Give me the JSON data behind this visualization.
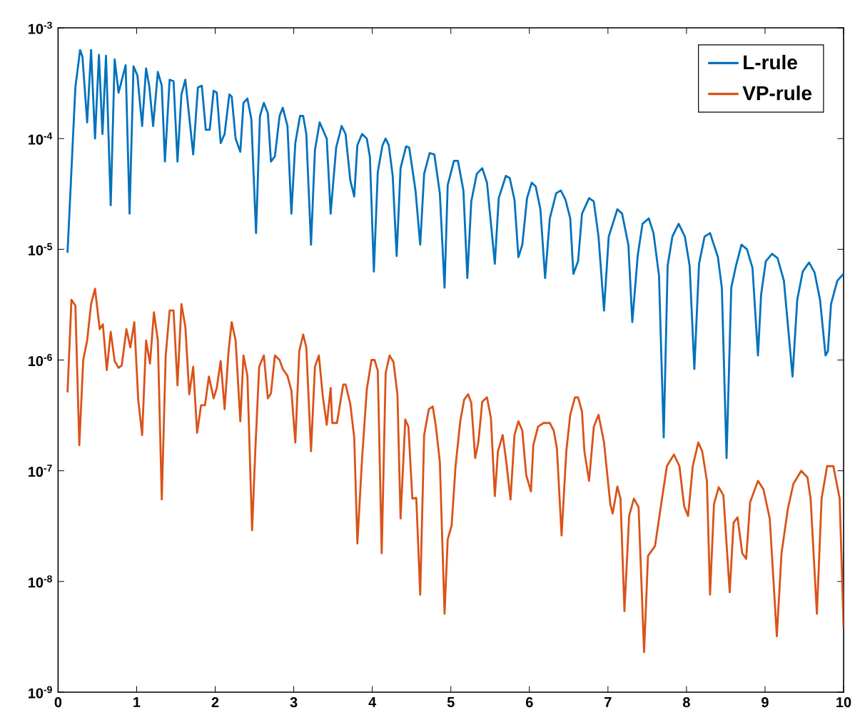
{
  "chart_data": {
    "type": "line",
    "log": "y",
    "legend": "top right",
    "xlim": [
      0,
      10
    ],
    "xticks": [
      0,
      1,
      2,
      3,
      4,
      5,
      6,
      7,
      8,
      9,
      10
    ],
    "ylim": [
      1e-09,
      0.001
    ],
    "yticks": [
      {
        "value": 1e-09,
        "label": "10$^{-9}$"
      },
      {
        "value": 1e-08,
        "label": "10$^{-8}$"
      },
      {
        "value": 1e-07,
        "label": "10$^{-7}$"
      },
      {
        "value": 1e-06,
        "label": "10$^{-6}$"
      },
      {
        "value": 1e-05,
        "label": "10$^{-5}$"
      },
      {
        "value": 0.0001,
        "label": "10$^{-4}$"
      },
      {
        "value": 0.001,
        "label": "10$^{-3}$"
      }
    ],
    "series": [
      {
        "name": "L-rule",
        "color": "#0072bd",
        "x": [
          0.12,
          0.22,
          0.28,
          0.31,
          0.37,
          0.42,
          0.47,
          0.52,
          0.565,
          0.61,
          0.67,
          0.72,
          0.77,
          0.86,
          0.91,
          0.96,
          1.01,
          1.07,
          1.12,
          1.16,
          1.21,
          1.27,
          1.32,
          1.36,
          1.42,
          1.47,
          1.52,
          1.57,
          1.62,
          1.72,
          1.78,
          1.83,
          1.88,
          1.93,
          1.98,
          2.02,
          2.07,
          2.12,
          2.18,
          2.21,
          2.26,
          2.32,
          2.36,
          2.41,
          2.46,
          2.52,
          2.57,
          2.62,
          2.67,
          2.71,
          2.76,
          2.82,
          2.86,
          2.92,
          2.97,
          3.02,
          3.08,
          3.12,
          3.16,
          3.22,
          3.27,
          3.33,
          3.42,
          3.47,
          3.54,
          3.61,
          3.66,
          3.72,
          3.77,
          3.81,
          3.87,
          3.93,
          3.97,
          4.02,
          4.07,
          4.13,
          4.17,
          4.21,
          4.26,
          4.31,
          4.36,
          4.43,
          4.47,
          4.55,
          4.61,
          4.66,
          4.73,
          4.79,
          4.86,
          4.92,
          4.96,
          5.04,
          5.09,
          5.16,
          5.21,
          5.26,
          5.33,
          5.4,
          5.46,
          5.56,
          5.61,
          5.7,
          5.75,
          5.81,
          5.86,
          5.91,
          5.97,
          6.03,
          6.08,
          6.14,
          6.2,
          6.26,
          6.34,
          6.4,
          6.46,
          6.52,
          6.56,
          6.62,
          6.67,
          6.76,
          6.82,
          6.88,
          6.95,
          7.01,
          7.12,
          7.18,
          7.26,
          7.31,
          7.38,
          7.44,
          7.52,
          7.58,
          7.65,
          7.71,
          7.76,
          7.82,
          7.9,
          7.98,
          8.04,
          8.1,
          8.16,
          8.23,
          8.3,
          8.4,
          8.45,
          8.51,
          8.57,
          8.63,
          8.7,
          8.77,
          8.84,
          8.91,
          8.95,
          9.01,
          9.09,
          9.16,
          9.24,
          9.35,
          9.41,
          9.48,
          9.56,
          9.63,
          9.7,
          9.77,
          9.8,
          9.84,
          9.92,
          10.0
        ],
        "values": [
          9.3e-06,
          0.00029,
          0.00063,
          0.00055,
          0.00014,
          0.00063,
          0.0001,
          0.00057,
          0.00011,
          0.00056,
          2.5e-05,
          0.00052,
          0.00026,
          0.00046,
          2.1e-05,
          0.00045,
          0.00037,
          0.00013,
          0.00043,
          0.0003,
          0.00013,
          0.0004,
          0.0003,
          6.2e-05,
          0.00034,
          0.00033,
          6.2e-05,
          0.00025,
          0.00034,
          7.2e-05,
          0.00029,
          0.0003,
          0.00012,
          0.00012,
          0.00027,
          0.00026,
          9.1e-05,
          0.00011,
          0.00025,
          0.00024,
          0.0001,
          7.6e-05,
          0.00021,
          0.00023,
          0.00015,
          1.4e-05,
          0.00016,
          0.00021,
          0.00017,
          6.2e-05,
          6.9e-05,
          0.00016,
          0.00019,
          0.00013,
          2.1e-05,
          9.1e-05,
          0.00016,
          0.00016,
          0.00011,
          1.1e-05,
          7.9e-05,
          0.00014,
          0.0001,
          2.1e-05,
          8.3e-05,
          0.00013,
          0.00011,
          4.2e-05,
          3e-05,
          8.7e-05,
          0.00011,
          0.0001,
          6.8e-05,
          6.3e-06,
          5e-05,
          8.7e-05,
          0.0001,
          8.7e-05,
          4.6e-05,
          8.7e-06,
          5.4e-05,
          8.5e-05,
          8.3e-05,
          3.4e-05,
          1.1e-05,
          4.8e-05,
          7.4e-05,
          7.2e-05,
          3.2e-05,
          4.5e-06,
          3.8e-05,
          6.3e-05,
          6.3e-05,
          3.4e-05,
          5.5e-06,
          2.7e-05,
          4.8e-05,
          5.4e-05,
          4e-05,
          7.4e-06,
          2.9e-05,
          4.6e-05,
          4.4e-05,
          2.8e-05,
          8.5e-06,
          1.1e-05,
          2.9e-05,
          4e-05,
          3.7e-05,
          2.3e-05,
          5.5e-06,
          1.9e-05,
          3.2e-05,
          3.4e-05,
          2.8e-05,
          1.9e-05,
          6e-06,
          7.8e-06,
          2.1e-05,
          2.9e-05,
          2.7e-05,
          1.3e-05,
          2.8e-06,
          1.3e-05,
          2.3e-05,
          2.1e-05,
          1.1e-05,
          2.2e-06,
          8.9e-06,
          1.7e-05,
          1.9e-05,
          1.4e-05,
          5.8e-06,
          2e-07,
          7.1e-06,
          1.3e-05,
          1.7e-05,
          1.3e-05,
          7.1e-06,
          8.3e-07,
          7.4e-06,
          1.3e-05,
          1.4e-05,
          8.5e-06,
          4.5e-06,
          1.3e-07,
          4.5e-06,
          7.1e-06,
          1.1e-05,
          1e-05,
          6.8e-06,
          1.1e-06,
          3.9e-06,
          7.8e-06,
          9.1e-06,
          8.3e-06,
          5.2e-06,
          7.1e-07,
          3.5e-06,
          6.3e-06,
          7.6e-06,
          6.2e-06,
          3.5e-06,
          1.1e-06,
          1.2e-06,
          3.2e-06,
          5.2e-06,
          6e-06
        ]
      },
      {
        "name": "VP-rule",
        "color": "#d95319",
        "x": [
          0.12,
          0.17,
          0.22,
          0.27,
          0.32,
          0.37,
          0.42,
          0.47,
          0.53,
          0.57,
          0.62,
          0.67,
          0.72,
          0.77,
          0.81,
          0.87,
          0.92,
          0.97,
          1.02,
          1.07,
          1.12,
          1.17,
          1.22,
          1.27,
          1.32,
          1.37,
          1.42,
          1.47,
          1.52,
          1.57,
          1.62,
          1.67,
          1.72,
          1.77,
          1.82,
          1.87,
          1.92,
          1.98,
          2.02,
          2.07,
          2.12,
          2.17,
          2.21,
          2.26,
          2.32,
          2.36,
          2.41,
          2.47,
          2.51,
          2.56,
          2.62,
          2.67,
          2.71,
          2.76,
          2.82,
          2.86,
          2.92,
          2.97,
          3.02,
          3.07,
          3.12,
          3.16,
          3.22,
          3.27,
          3.32,
          3.37,
          3.42,
          3.47,
          3.49,
          3.55,
          3.63,
          3.66,
          3.72,
          3.77,
          3.81,
          3.87,
          3.93,
          3.99,
          4.03,
          4.07,
          4.12,
          4.17,
          4.22,
          4.27,
          4.32,
          4.36,
          4.42,
          4.46,
          4.51,
          4.56,
          4.61,
          4.66,
          4.72,
          4.77,
          4.81,
          4.86,
          4.92,
          4.96,
          5.01,
          5.06,
          5.12,
          5.17,
          5.22,
          5.26,
          5.31,
          5.35,
          5.4,
          5.46,
          5.51,
          5.56,
          5.6,
          5.66,
          5.7,
          5.76,
          5.81,
          5.86,
          5.91,
          5.96,
          6.02,
          6.05,
          6.11,
          6.18,
          6.26,
          6.31,
          6.35,
          6.41,
          6.47,
          6.52,
          6.58,
          6.62,
          6.67,
          6.7,
          6.76,
          6.82,
          6.88,
          6.95,
          7.03,
          7.06,
          7.12,
          7.16,
          7.21,
          7.27,
          7.33,
          7.39,
          7.46,
          7.51,
          7.6,
          7.66,
          7.75,
          7.84,
          7.91,
          7.97,
          8.02,
          8.08,
          8.15,
          8.2,
          8.26,
          8.3,
          8.35,
          8.41,
          8.47,
          8.55,
          8.6,
          8.65,
          8.71,
          8.76,
          8.81,
          8.91,
          8.98,
          9.06,
          9.15,
          9.21,
          9.29,
          9.36,
          9.46,
          9.54,
          9.58,
          9.66,
          9.72,
          9.79,
          9.87,
          9.95,
          10.0
        ],
        "values": [
          5.1e-07,
          3.5e-06,
          3.1e-06,
          1.7e-07,
          1e-06,
          1.5e-06,
          3.2e-06,
          4.4e-06,
          1.9e-06,
          2.1e-06,
          8.1e-07,
          1.8e-06,
          9.8e-07,
          8.5e-07,
          8.9e-07,
          1.9e-06,
          1.3e-06,
          2.2e-06,
          4.4e-07,
          2.1e-07,
          1.5e-06,
          9.3e-07,
          2.7e-06,
          1.5e-06,
          5.5e-08,
          1.1e-06,
          2.8e-06,
          2.8e-06,
          5.9e-07,
          3.2e-06,
          2e-06,
          4.9e-07,
          8.7e-07,
          2.2e-07,
          3.9e-07,
          3.9e-07,
          7.1e-07,
          4.5e-07,
          5.6e-07,
          9.8e-07,
          3.6e-07,
          1.2e-06,
          2.2e-06,
          1.5e-06,
          2.8e-07,
          1.1e-06,
          7.2e-07,
          2.9e-08,
          1.5e-07,
          8.7e-07,
          1.1e-06,
          4.5e-07,
          5e-07,
          1.1e-06,
          1e-06,
          8.3e-07,
          7.2e-07,
          5.3e-07,
          1.8e-07,
          1.2e-06,
          1.7e-06,
          1.3e-06,
          1.5e-07,
          8.7e-07,
          1.1e-06,
          4.7e-07,
          2.6e-07,
          5.6e-07,
          2.7e-07,
          2.7e-07,
          6e-07,
          6e-07,
          4e-07,
          2e-07,
          2.2e-08,
          1.3e-07,
          5.4e-07,
          1e-06,
          1e-06,
          8e-07,
          1.8e-08,
          7.6e-07,
          1.1e-06,
          9.6e-07,
          4.9e-07,
          3.7e-08,
          2.9e-07,
          2.5e-07,
          5.6e-08,
          5.7e-08,
          7.6e-09,
          2.1e-07,
          3.6e-07,
          3.8e-07,
          2.5e-07,
          1.2e-07,
          5.1e-09,
          2.4e-08,
          3.2e-08,
          1.1e-07,
          2.8e-07,
          4.4e-07,
          4.9e-07,
          4.1e-07,
          1.3e-07,
          1.8e-07,
          4.2e-07,
          4.6e-07,
          3e-07,
          5.9e-08,
          1.5e-07,
          2.1e-07,
          1.3e-07,
          5.5e-08,
          2.1e-07,
          2.8e-07,
          2.3e-07,
          9.1e-08,
          6.5e-08,
          1.7e-07,
          2.5e-07,
          2.7e-07,
          2.7e-07,
          2.3e-07,
          1.6e-07,
          2.6e-08,
          1.5e-07,
          3.2e-07,
          4.6e-07,
          4.6e-07,
          3.4e-07,
          1.5e-07,
          8.1e-08,
          2.5e-07,
          3.2e-07,
          1.8e-07,
          5e-08,
          4.1e-08,
          7.2e-08,
          5.6e-08,
          5.4e-09,
          3.9e-08,
          5.6e-08,
          4.7e-08,
          2.3e-09,
          1.7e-08,
          2.1e-08,
          4.1e-08,
          1.1e-07,
          1.4e-07,
          1.1e-07,
          4.8e-08,
          3.9e-08,
          1.1e-07,
          1.8e-07,
          1.5e-07,
          8.1e-08,
          7.6e-09,
          5e-08,
          7.1e-08,
          6e-08,
          8e-09,
          3.4e-08,
          3.8e-08,
          1.8e-08,
          1.6e-08,
          5.2e-08,
          8.1e-08,
          6.8e-08,
          3.7e-08,
          3.2e-09,
          1.8e-08,
          4.5e-08,
          7.6e-08,
          1e-07,
          8.7e-08,
          5.6e-08,
          5.1e-09,
          5.6e-08,
          1.1e-07,
          1.1e-07,
          5.6e-08,
          3.8e-09
        ]
      }
    ]
  }
}
